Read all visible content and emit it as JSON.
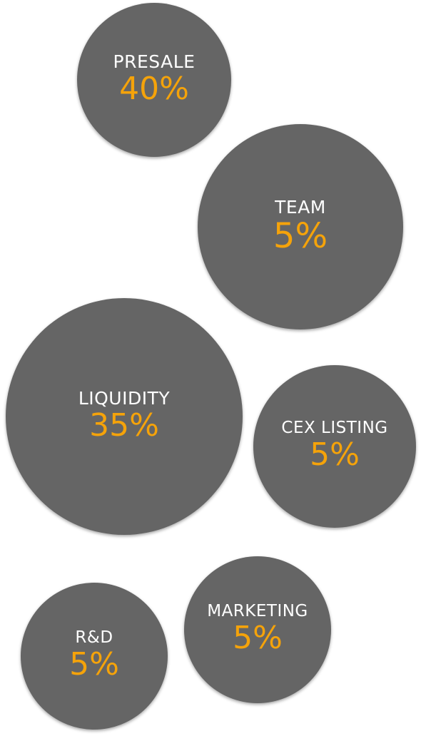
{
  "chart_data": {
    "type": "bubble",
    "accent_color": "#f5a30a",
    "bubble_color": "#656565",
    "label_color": "#ffffff",
    "items": [
      {
        "label": "PRESALE",
        "value": 40,
        "display": "40%"
      },
      {
        "label": "TEAM",
        "value": 5,
        "display": "5%"
      },
      {
        "label": "LIQUIDITY",
        "value": 35,
        "display": "35%"
      },
      {
        "label": "CEX LISTING",
        "value": 5,
        "display": "5%"
      },
      {
        "label": "MARKETING",
        "value": 5,
        "display": "5%"
      },
      {
        "label": "R&D",
        "value": 5,
        "display": "5%"
      }
    ]
  }
}
